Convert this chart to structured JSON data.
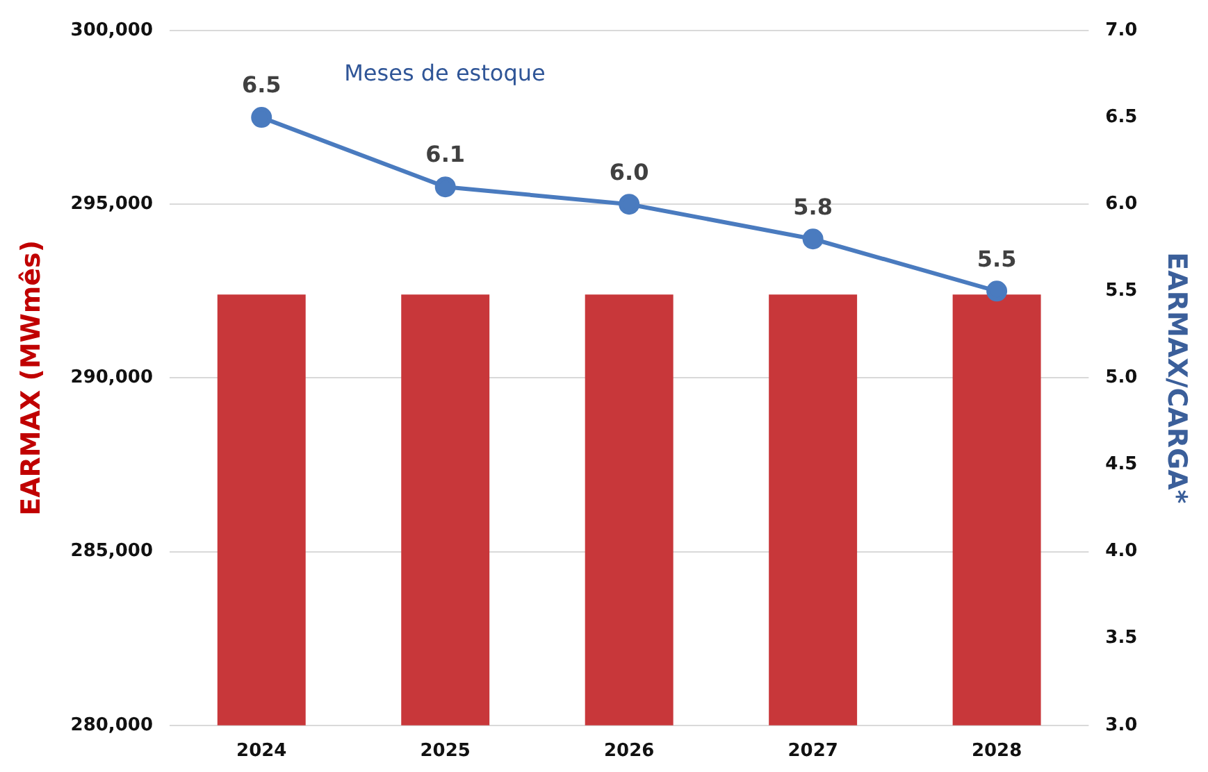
{
  "chart_data": {
    "type": "bar",
    "ylabel": "EARMAX (MWmês)",
    "y2label": "EARMAX/CARGA*",
    "categories": [
      "2024",
      "2025",
      "2026",
      "2027",
      "2028"
    ],
    "series": [
      {
        "color": "#c8373a",
        "values": [
          292400,
          292400,
          292400,
          292400,
          292400
        ]
      },
      {
        "type": "line",
        "name": "Meses de estoque",
        "axis": "y2",
        "color": "#4a7bbf",
        "values": [
          6.5,
          6.1,
          6.0,
          5.8,
          5.5
        ],
        "value_labels": [
          "6.5",
          "6.1",
          "6.0",
          "5.8",
          "5.5"
        ]
      }
    ],
    "ylim": [
      280000,
      300000
    ],
    "yticks": [
      {
        "value": 280000,
        "label": "280,000"
      },
      {
        "value": 285000,
        "label": "285,000"
      },
      {
        "value": 290000,
        "label": "290,000"
      },
      {
        "value": 295000,
        "label": "295,000"
      },
      {
        "value": 300000,
        "label": "300,000"
      }
    ],
    "y2lim": [
      3,
      7
    ],
    "y2ticks": [
      {
        "value": 3,
        "label": "3.0"
      },
      {
        "value": 3.5,
        "label": "3.5"
      },
      {
        "value": 4,
        "label": "4.0"
      },
      {
        "value": 4.5,
        "label": "4.5"
      },
      {
        "value": 5,
        "label": "5.0"
      },
      {
        "value": 5.5,
        "label": "5.5"
      },
      {
        "value": 6,
        "label": "6.0"
      },
      {
        "value": 6.5,
        "label": "6.5"
      },
      {
        "value": 7,
        "label": "7.0"
      }
    ],
    "grid": "y",
    "legend": false,
    "marker": "circle",
    "line_style": "solid"
  }
}
